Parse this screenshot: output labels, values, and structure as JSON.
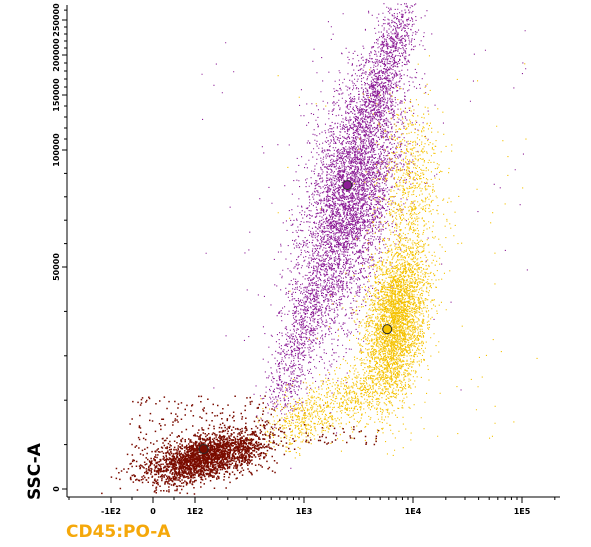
{
  "chart_data": {
    "type": "scatter",
    "title": "",
    "xlabel": "CD45:PO-A",
    "ylabel": "SSC-A",
    "x_scale": "biexponential",
    "y_scale": "biexponential",
    "grid": false,
    "xlim": [
      -300,
      200000
    ],
    "ylim": [
      -8000,
      262144
    ],
    "x_ticks": [
      {
        "label": "-1E2",
        "value": -100
      },
      {
        "label": "0",
        "value": 0
      },
      {
        "label": "1E2",
        "value": 100
      },
      {
        "label": "1E3",
        "value": 1000
      },
      {
        "label": "1E4",
        "value": 10000
      },
      {
        "label": "1E5",
        "value": 100000
      }
    ],
    "y_ticks": [
      {
        "label": "0",
        "value": 0
      },
      {
        "label": "50000",
        "value": 50000
      },
      {
        "label": "100000",
        "value": 100000
      },
      {
        "label": "150000",
        "value": 150000
      },
      {
        "label": "200000",
        "value": 200000
      },
      {
        "label": "250000",
        "value": 250000
      }
    ],
    "series": [
      {
        "color": "#8c1c96",
        "center": [
          2500,
          85000
        ],
        "x_range": [
          900,
          6000
        ],
        "y_range": [
          38000,
          230000
        ]
      },
      {
        "color": "#f5c200",
        "center": [
          5800,
          36000
        ],
        "x_range": [
          300,
          12000
        ],
        "y_range": [
          12000,
          90000
        ]
      },
      {
        "color": "#7a0c00",
        "center": [
          120,
          9000
        ],
        "x_range": [
          -100,
          300
        ],
        "y_range": [
          4000,
          22000
        ]
      }
    ],
    "cluster_centers": [
      {
        "x": 2500,
        "y": 85000,
        "color": "#8c1c96"
      },
      {
        "x": 5800,
        "y": 36000,
        "color": "#f5c200"
      },
      {
        "x": 120,
        "y": 9000,
        "color": "#7a0c00"
      }
    ]
  }
}
